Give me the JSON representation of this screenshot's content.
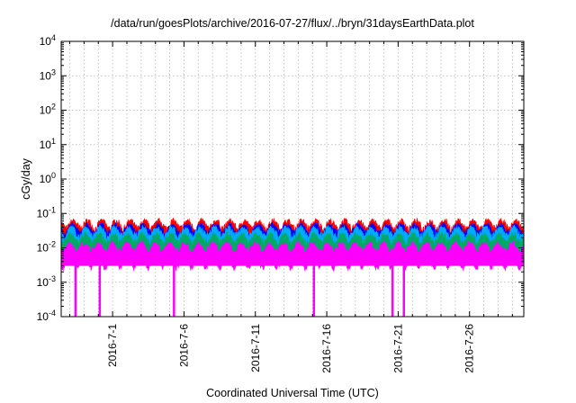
{
  "chart_data": {
    "type": "area",
    "title": "/data/run/goesPlots/archive/2016-07-27/flux/../bryn/31daysEarthData.plot",
    "xlabel": "Coordinated Universal Time (UTC)",
    "ylabel": "cGy/day",
    "yscale": "log",
    "ylim_exponents": [
      -4,
      4
    ],
    "xlim_days": [
      -3.6,
      28.8
    ],
    "x_ticks": [
      {
        "label": "2016-7-1",
        "day": 0
      },
      {
        "label": "2016-7-6",
        "day": 5
      },
      {
        "label": "2016-7-11",
        "day": 10
      },
      {
        "label": "2016-7-16",
        "day": 15
      },
      {
        "label": "2016-7-21",
        "day": 20
      },
      {
        "label": "2016-7-26",
        "day": 25
      }
    ],
    "y_ticks": [
      {
        "mantissa": "10",
        "exp": "-4",
        "e": -4
      },
      {
        "mantissa": "10",
        "exp": "-3",
        "e": -3
      },
      {
        "mantissa": "10",
        "exp": "-2",
        "e": -2
      },
      {
        "mantissa": "10",
        "exp": "-1",
        "e": -1
      },
      {
        "mantissa": "10",
        "exp": "0",
        "e": 0
      },
      {
        "mantissa": "10",
        "exp": "1",
        "e": 1
      },
      {
        "mantissa": "10",
        "exp": "2",
        "e": 2
      },
      {
        "mantissa": "10",
        "exp": "3",
        "e": 3
      },
      {
        "mantissa": "10",
        "exp": "4",
        "e": 4
      }
    ],
    "grid": true,
    "series": [
      {
        "color": "#ff0000",
        "base": 0.038,
        "amp": 0.022
      },
      {
        "color": "#0000ff",
        "base": 0.03,
        "amp": 0.015
      },
      {
        "color": "#00aaff",
        "base": 0.025,
        "amp": 0.012
      },
      {
        "color": "#00aa66",
        "base": 0.016,
        "amp": 0.008
      },
      {
        "color": "#ff00ff",
        "base": 0.0085,
        "amp": 0.0045
      }
    ],
    "magenta_floor": 0.003,
    "dropouts_day": [
      -2.6,
      -0.9,
      4.3,
      14.1,
      19.6,
      20.4
    ]
  }
}
